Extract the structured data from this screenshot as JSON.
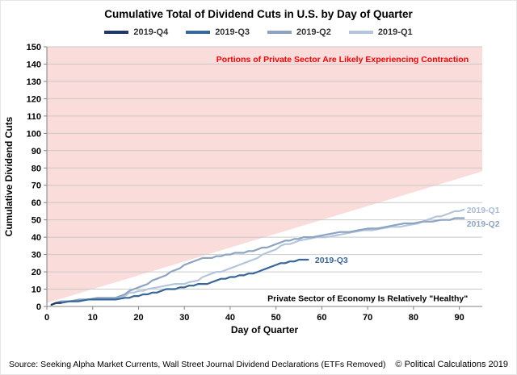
{
  "title": "Cumulative Total of Dividend Cuts in U.S. by Day of Quarter",
  "legend": {
    "items": [
      {
        "label": "2019-Q4",
        "color": "#1F3864"
      },
      {
        "label": "2019-Q3",
        "color": "#376699"
      },
      {
        "label": "2019-Q2",
        "color": "#8CA3C2"
      },
      {
        "label": "2019-Q1",
        "color": "#B4C6DC"
      }
    ]
  },
  "footer": {
    "source": "Source: Seeking Alpha Market Currents, Wall Street Journal Dividend Declarations (ETFs Removed)",
    "copyright": "© Political Calculations 2019"
  },
  "chart_data": {
    "type": "line",
    "title": "Cumulative Total of Dividend Cuts in U.S. by Day of Quarter",
    "xlabel": "Day of Quarter",
    "ylabel": "Cumulative Dividend Cuts",
    "xlim": [
      0,
      95
    ],
    "ylim": [
      0,
      150
    ],
    "xticks": [
      0,
      10,
      20,
      30,
      40,
      50,
      60,
      70,
      80,
      90
    ],
    "yticks": [
      0,
      10,
      20,
      30,
      40,
      50,
      60,
      70,
      80,
      90,
      100,
      110,
      120,
      130,
      140,
      150
    ],
    "grid": "horizontal",
    "legend_position": "top",
    "contraction_region": {
      "color": "#FADCDB",
      "boundary": [
        [
          0,
          2
        ],
        [
          95,
          78
        ]
      ]
    },
    "series": [
      {
        "name": "2019-Q4",
        "color": "#1F3864",
        "points": [
          [
            1,
            1
          ],
          [
            2,
            2
          ],
          [
            3,
            2
          ]
        ]
      },
      {
        "name": "2019-Q3",
        "color": "#376699",
        "points": [
          [
            1,
            1
          ],
          [
            2,
            2
          ],
          [
            3,
            2
          ],
          [
            5,
            3
          ],
          [
            7,
            3
          ],
          [
            9,
            4
          ],
          [
            11,
            4
          ],
          [
            13,
            4
          ],
          [
            15,
            4
          ],
          [
            17,
            5
          ],
          [
            18,
            5
          ],
          [
            19,
            6
          ],
          [
            20,
            6
          ],
          [
            21,
            7
          ],
          [
            22,
            7
          ],
          [
            23,
            8
          ],
          [
            24,
            8
          ],
          [
            25,
            9
          ],
          [
            26,
            10
          ],
          [
            27,
            10
          ],
          [
            28,
            10
          ],
          [
            29,
            11
          ],
          [
            30,
            11
          ],
          [
            31,
            12
          ],
          [
            32,
            12
          ],
          [
            33,
            13
          ],
          [
            34,
            13
          ],
          [
            35,
            13
          ],
          [
            36,
            14
          ],
          [
            37,
            15
          ],
          [
            38,
            16
          ],
          [
            39,
            16
          ],
          [
            40,
            17
          ],
          [
            41,
            17
          ],
          [
            42,
            18
          ],
          [
            43,
            18
          ],
          [
            44,
            19
          ],
          [
            45,
            19
          ],
          [
            46,
            20
          ],
          [
            47,
            21
          ],
          [
            48,
            22
          ],
          [
            49,
            23
          ],
          [
            50,
            24
          ],
          [
            51,
            25
          ],
          [
            52,
            25
          ],
          [
            53,
            26
          ],
          [
            54,
            26
          ],
          [
            55,
            27
          ],
          [
            56,
            27
          ],
          [
            57,
            27
          ]
        ]
      },
      {
        "name": "2019-Q2",
        "color": "#8CA3C2",
        "points": [
          [
            1,
            1
          ],
          [
            2,
            2
          ],
          [
            3,
            3
          ],
          [
            5,
            3
          ],
          [
            7,
            4
          ],
          [
            9,
            4
          ],
          [
            11,
            5
          ],
          [
            13,
            5
          ],
          [
            15,
            5
          ],
          [
            16,
            6
          ],
          [
            17,
            7
          ],
          [
            18,
            9
          ],
          [
            19,
            10
          ],
          [
            20,
            11
          ],
          [
            21,
            12
          ],
          [
            22,
            13
          ],
          [
            23,
            15
          ],
          [
            24,
            16
          ],
          [
            25,
            17
          ],
          [
            26,
            18
          ],
          [
            27,
            20
          ],
          [
            28,
            21
          ],
          [
            29,
            22
          ],
          [
            30,
            24
          ],
          [
            31,
            25
          ],
          [
            32,
            26
          ],
          [
            33,
            27
          ],
          [
            34,
            28
          ],
          [
            35,
            28
          ],
          [
            36,
            28
          ],
          [
            37,
            29
          ],
          [
            38,
            29
          ],
          [
            39,
            30
          ],
          [
            40,
            30
          ],
          [
            41,
            31
          ],
          [
            42,
            31
          ],
          [
            43,
            31
          ],
          [
            44,
            32
          ],
          [
            45,
            32
          ],
          [
            46,
            33
          ],
          [
            47,
            34
          ],
          [
            48,
            34
          ],
          [
            49,
            35
          ],
          [
            50,
            36
          ],
          [
            51,
            37
          ],
          [
            52,
            38
          ],
          [
            53,
            38
          ],
          [
            54,
            39
          ],
          [
            55,
            39
          ],
          [
            56,
            40
          ],
          [
            58,
            40
          ],
          [
            60,
            41
          ],
          [
            62,
            42
          ],
          [
            64,
            43
          ],
          [
            66,
            43
          ],
          [
            68,
            44
          ],
          [
            70,
            45
          ],
          [
            72,
            45
          ],
          [
            74,
            46
          ],
          [
            76,
            47
          ],
          [
            78,
            48
          ],
          [
            80,
            48
          ],
          [
            82,
            49
          ],
          [
            84,
            49
          ],
          [
            86,
            50
          ],
          [
            88,
            50
          ],
          [
            89,
            51
          ],
          [
            90,
            51
          ],
          [
            91,
            51
          ]
        ]
      },
      {
        "name": "2019-Q1",
        "color": "#B4C6DC",
        "points": [
          [
            1,
            1
          ],
          [
            2,
            2
          ],
          [
            4,
            3
          ],
          [
            6,
            3
          ],
          [
            9,
            4
          ],
          [
            12,
            4
          ],
          [
            15,
            4
          ],
          [
            16,
            5
          ],
          [
            17,
            6
          ],
          [
            18,
            8
          ],
          [
            19,
            8
          ],
          [
            20,
            9
          ],
          [
            21,
            9
          ],
          [
            22,
            10
          ],
          [
            24,
            11
          ],
          [
            26,
            12
          ],
          [
            28,
            13
          ],
          [
            30,
            13
          ],
          [
            31,
            14
          ],
          [
            33,
            15
          ],
          [
            34,
            17
          ],
          [
            35,
            18
          ],
          [
            36,
            19
          ],
          [
            37,
            20
          ],
          [
            38,
            20
          ],
          [
            39,
            21
          ],
          [
            40,
            22
          ],
          [
            41,
            23
          ],
          [
            42,
            24
          ],
          [
            43,
            25
          ],
          [
            44,
            26
          ],
          [
            45,
            27
          ],
          [
            46,
            28
          ],
          [
            47,
            30
          ],
          [
            48,
            31
          ],
          [
            49,
            32
          ],
          [
            50,
            33
          ],
          [
            51,
            35
          ],
          [
            52,
            36
          ],
          [
            53,
            36
          ],
          [
            54,
            37
          ],
          [
            55,
            38
          ],
          [
            57,
            39
          ],
          [
            59,
            40
          ],
          [
            61,
            40
          ],
          [
            63,
            41
          ],
          [
            65,
            42
          ],
          [
            67,
            43
          ],
          [
            69,
            44
          ],
          [
            71,
            44
          ],
          [
            73,
            45
          ],
          [
            75,
            46
          ],
          [
            77,
            46
          ],
          [
            79,
            47
          ],
          [
            81,
            48
          ],
          [
            82,
            49
          ],
          [
            83,
            50
          ],
          [
            84,
            51
          ],
          [
            85,
            52
          ],
          [
            86,
            52
          ],
          [
            87,
            53
          ],
          [
            88,
            54
          ],
          [
            89,
            55
          ],
          [
            90,
            55
          ],
          [
            91,
            56
          ]
        ]
      }
    ],
    "annotations": [
      {
        "text": "Portions of Private Sector Are Likely Experiencing Contraction",
        "x": 64.5,
        "y": 143,
        "color": "#FF0000",
        "anchor": "middle"
      },
      {
        "text": "Private Sector of Economy Is Relatively \"Healthy\"",
        "x": 70,
        "y": 5,
        "color": "#000000",
        "anchor": "middle"
      },
      {
        "text": "2019-Q1",
        "x": 91.6,
        "y": 56,
        "color": "#A9BCD4",
        "anchor": "start"
      },
      {
        "text": "2019-Q2",
        "x": 91.6,
        "y": 48,
        "color": "#8CA3C2",
        "anchor": "start"
      },
      {
        "text": "2019-Q3",
        "x": 58.5,
        "y": 27,
        "color": "#376699",
        "anchor": "start"
      }
    ]
  }
}
